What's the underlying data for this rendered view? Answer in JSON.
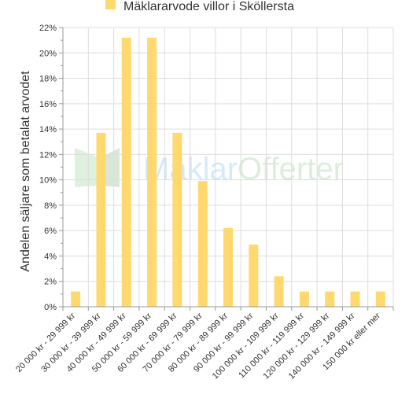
{
  "chart_data": {
    "type": "bar",
    "title": "",
    "legend": {
      "label": "Mäklararvode villor i Sköllersta",
      "position": "top-center"
    },
    "ylabel": "Andelen säljare som betalat arvodet",
    "xlabel": "",
    "ylim": [
      0,
      22
    ],
    "yticks": [
      0,
      2,
      4,
      6,
      8,
      10,
      12,
      14,
      16,
      18,
      20,
      22
    ],
    "y_tick_suffix": "%",
    "grid": true,
    "categories": [
      "20 000 kr - 29 999 kr",
      "30 000 kr - 39 999 kr",
      "40 000 kr - 49 999 kr",
      "50 000 kr - 59 999 kr",
      "60 000 kr - 69 999 kr",
      "70 000 kr - 79 999 kr",
      "80 000 kr - 89 999 kr",
      "90 000 kr - 99 999 kr",
      "100 000 kr - 109 999 kr",
      "110 000 kr - 119 999 kr",
      "120 000 kr - 129 999 kr",
      "140 000 kr - 149 999 kr",
      "150 000 kr eller mer"
    ],
    "series": [
      {
        "name": "Mäklararvode villor i Sköllersta",
        "values": [
          1.2,
          13.7,
          21.2,
          21.2,
          13.7,
          9.9,
          6.2,
          4.9,
          2.4,
          1.2,
          1.2,
          1.2,
          1.2
        ]
      }
    ]
  },
  "colors": {
    "bar": "#ffd86e",
    "grid": "#dddddd",
    "axis": "#999999",
    "text": "#333333"
  },
  "watermark": {
    "part1": "Mäklar",
    "part2": "Offerter"
  }
}
